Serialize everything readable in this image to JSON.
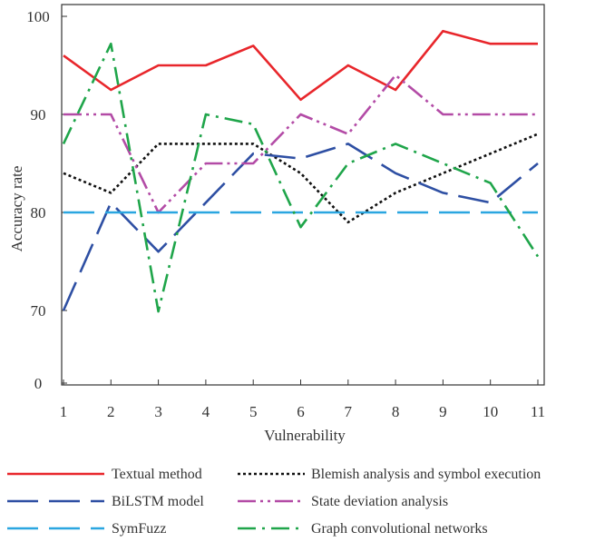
{
  "chart_data": {
    "type": "line",
    "title": "",
    "xlabel": "Vulnerability",
    "ylabel": "Accuracy rate",
    "x": [
      1,
      2,
      3,
      4,
      5,
      6,
      7,
      8,
      9,
      10,
      11
    ],
    "y_ticks": [
      {
        "value": 0,
        "label": "0"
      },
      {
        "value": 70,
        "label": "70"
      },
      {
        "value": 80,
        "label": "80"
      },
      {
        "value": 90,
        "label": "90"
      },
      {
        "value": 100,
        "label": "100"
      }
    ],
    "y_axis_break": "display is compressed below 70; the 0 tick sits just under the 70 band",
    "ylim": [
      0,
      100
    ],
    "grid": false,
    "legend_position": "bottom",
    "series": [
      {
        "name": "Textual method",
        "color": "#e8262b",
        "dash": "solid",
        "values": [
          96,
          92.5,
          95,
          95,
          97,
          91.5,
          95,
          92.5,
          98.5,
          97.2,
          97.2
        ]
      },
      {
        "name": "Blemish analysis and symbol execution",
        "color": "#111111",
        "dash": "dotted",
        "values": [
          84,
          82,
          87,
          87,
          87,
          84,
          79,
          82,
          84,
          86,
          88
        ]
      },
      {
        "name": "BiLSTM model",
        "color": "#2e4fa3",
        "dash": "long-dash",
        "values": [
          70,
          81,
          76,
          81,
          86,
          85.5,
          87,
          84,
          82,
          81,
          85
        ]
      },
      {
        "name": "State deviation analysis",
        "color": "#b34ba6",
        "dash": "dash-dot-dot",
        "values": [
          90,
          90,
          80,
          85,
          85,
          90,
          88,
          94,
          90,
          90,
          90
        ]
      },
      {
        "name": "SymFuzz",
        "color": "#2aa6e0",
        "dash": "long-dash",
        "values": [
          80,
          80,
          80,
          80,
          80,
          80,
          80,
          80,
          80,
          80,
          80
        ]
      },
      {
        "name": "Graph convolutional networks",
        "color": "#1fa54a",
        "dash": "dash-dot",
        "values": [
          87,
          97.2,
          69,
          90,
          89,
          78.5,
          85,
          87,
          85,
          83,
          75.5
        ]
      }
    ]
  }
}
